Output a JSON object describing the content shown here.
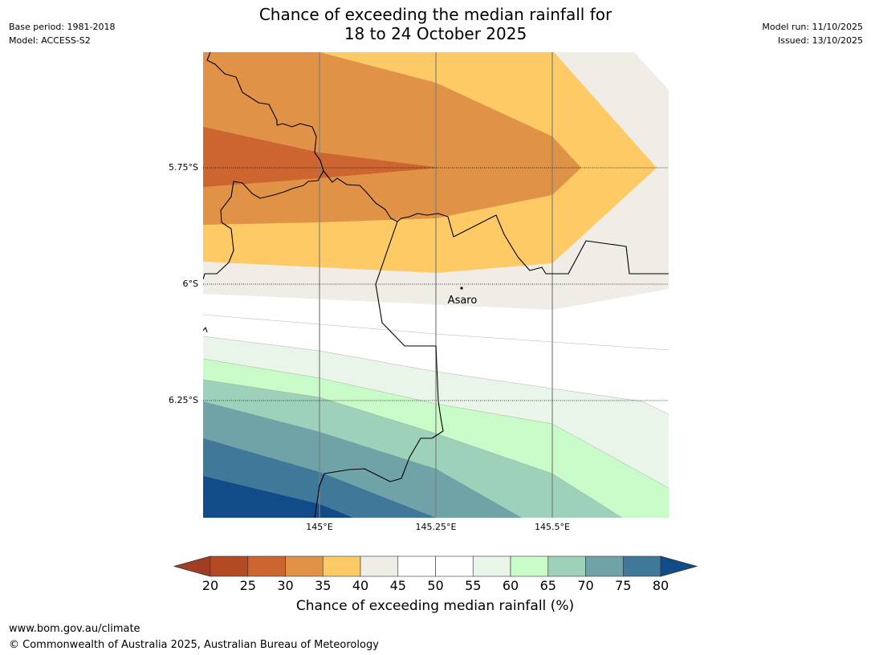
{
  "header": {
    "title_line1": "Chance of exceeding the median rainfall for",
    "title_line2": "18 to 24 October 2025",
    "base_period": "Base period: 1981-2018",
    "model": "Model: ACCESS-S2",
    "model_run": "Model run: 11/10/2025",
    "issued": "Issued: 13/10/2025"
  },
  "map": {
    "lat_labels": [
      "5.75°S",
      "6°S",
      "6.25°S"
    ],
    "lon_labels": [
      "145°E",
      "145.25°E",
      "145.5°E"
    ],
    "place": {
      "name": "Asaro"
    }
  },
  "colorbar": {
    "ticks": [
      "20",
      "25",
      "30",
      "35",
      "40",
      "45",
      "50",
      "55",
      "60",
      "65",
      "70",
      "75",
      "80"
    ],
    "label": "Chance of exceeding median rainfall (%)",
    "colors": {
      "below20": "#a23d24",
      "20-25": "#b34a24",
      "25-30": "#cc6530",
      "30-35": "#e09346",
      "35-40": "#fdca65",
      "40-45": "#f0ece6",
      "45-50": "#ffffff",
      "50-55": "#ffffff",
      "55-60": "#eaf5ea",
      "60-65": "#c9fbc9",
      "65-70": "#9dd1b9",
      "70-75": "#6fa3a8",
      "75-80": "#3f7899",
      "above80": "#124c88"
    }
  },
  "footer": {
    "url": "www.bom.gov.au/climate",
    "copyright": "© Commonwealth of Australia 2025, Australian Bureau of Meteorology"
  }
}
